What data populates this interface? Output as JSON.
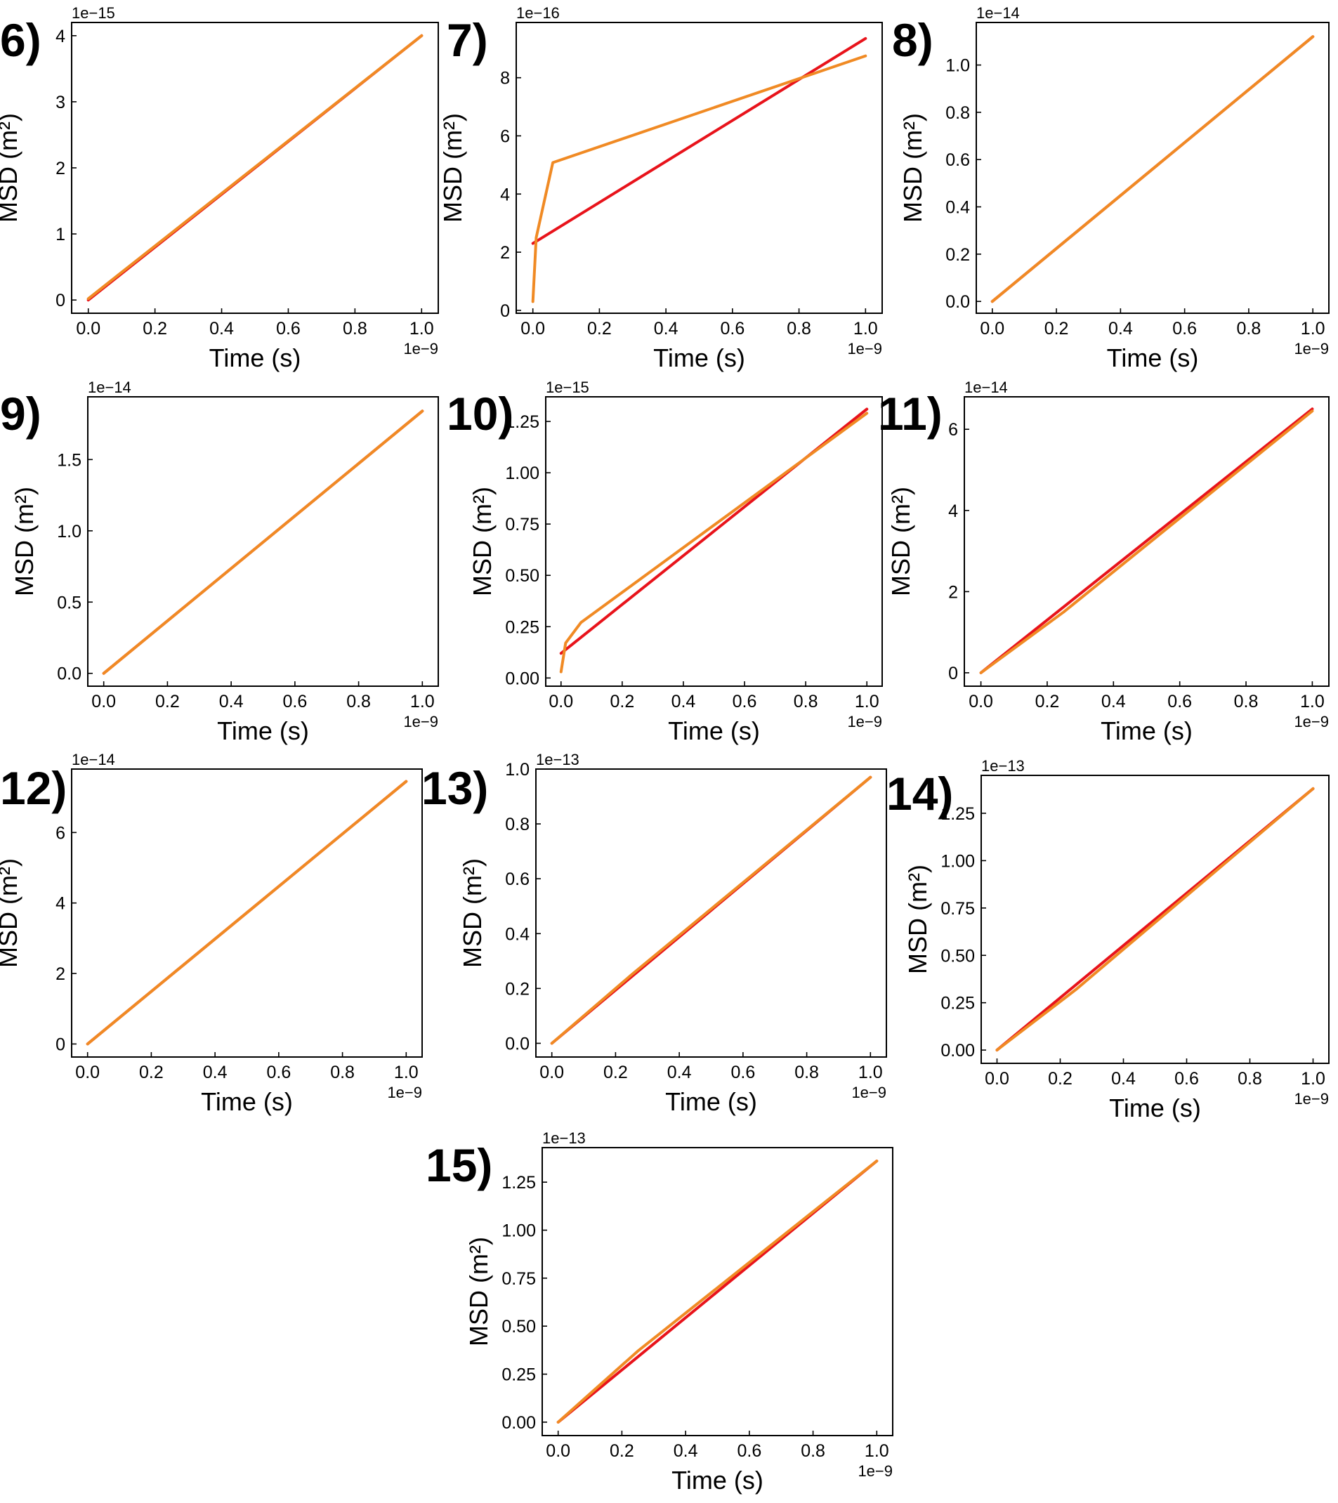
{
  "colors": {
    "series_red": "#e8131b",
    "series_orange": "#f08a24",
    "axes": "#000000"
  },
  "chart_data": [
    {
      "panel": "6)",
      "type": "line",
      "xlabel": "Time (s)",
      "ylabel": "MSD (m²)",
      "x_offset": "1e−9",
      "y_offset": "1e−15",
      "xlim": [
        -0.05,
        1.05
      ],
      "ylim": [
        -0.2,
        4.2
      ],
      "xticks": [
        0.0,
        0.2,
        0.4,
        0.6,
        0.8,
        1.0
      ],
      "xtick_labels": [
        "0.0",
        "0.2",
        "0.4",
        "0.6",
        "0.8",
        "1.0"
      ],
      "yticks": [
        0,
        1,
        2,
        3,
        4
      ],
      "ytick_labels": [
        "0",
        "1",
        "2",
        "3",
        "4"
      ],
      "grid": false,
      "series": [
        {
          "color": "#e8131b",
          "x": [
            0.0,
            1.0
          ],
          "y": [
            0.0,
            4.0
          ]
        },
        {
          "color": "#f08a24",
          "x": [
            0.0,
            0.05,
            0.1,
            1.0
          ],
          "y": [
            0.02,
            0.22,
            0.42,
            4.0
          ]
        }
      ]
    },
    {
      "panel": "7)",
      "type": "line",
      "xlabel": "Time (s)",
      "ylabel": "MSD (m²)",
      "x_offset": "1e−9",
      "y_offset": "1e−16",
      "xlim": [
        -0.05,
        1.05
      ],
      "ylim": [
        -0.1,
        9.9
      ],
      "xticks": [
        0.0,
        0.2,
        0.4,
        0.6,
        0.8,
        1.0
      ],
      "xtick_labels": [
        "0.0",
        "0.2",
        "0.4",
        "0.6",
        "0.8",
        "1.0"
      ],
      "yticks": [
        0,
        2,
        4,
        6,
        8
      ],
      "ytick_labels": [
        "0",
        "2",
        "4",
        "6",
        "8"
      ],
      "grid": false,
      "series": [
        {
          "color": "#e8131b",
          "x": [
            0.0,
            1.0
          ],
          "y": [
            2.3,
            9.35
          ]
        },
        {
          "color": "#f08a24",
          "x": [
            0.0,
            0.01,
            0.06,
            1.0
          ],
          "y": [
            0.3,
            2.5,
            5.08,
            8.75
          ]
        }
      ]
    },
    {
      "panel": "8)",
      "type": "line",
      "xlabel": "Time (s)",
      "ylabel": "MSD (m²)",
      "x_offset": "1e−9",
      "y_offset": "1e−14",
      "xlim": [
        -0.05,
        1.05
      ],
      "ylim": [
        -0.05,
        1.18
      ],
      "xticks": [
        0.0,
        0.2,
        0.4,
        0.6,
        0.8,
        1.0
      ],
      "xtick_labels": [
        "0.0",
        "0.2",
        "0.4",
        "0.6",
        "0.8",
        "1.0"
      ],
      "yticks": [
        0.0,
        0.2,
        0.4,
        0.6,
        0.8,
        1.0
      ],
      "ytick_labels": [
        "0.0",
        "0.2",
        "0.4",
        "0.6",
        "0.8",
        "1.0"
      ],
      "grid": false,
      "series": [
        {
          "color": "#e8131b",
          "x": [
            0.0,
            1.0
          ],
          "y": [
            0.0,
            1.12
          ]
        },
        {
          "color": "#f08a24",
          "x": [
            0.0,
            1.0
          ],
          "y": [
            0.0,
            1.12
          ]
        }
      ]
    },
    {
      "panel": "9)",
      "type": "line",
      "xlabel": "Time (s)",
      "ylabel": "MSD (m²)",
      "x_offset": "1e−9",
      "y_offset": "1e−14",
      "xlim": [
        -0.05,
        1.05
      ],
      "ylim": [
        -0.09,
        1.94
      ],
      "xticks": [
        0.0,
        0.2,
        0.4,
        0.6,
        0.8,
        1.0
      ],
      "xtick_labels": [
        "0.0",
        "0.2",
        "0.4",
        "0.6",
        "0.8",
        "1.0"
      ],
      "yticks": [
        0.0,
        0.5,
        1.0,
        1.5
      ],
      "ytick_labels": [
        "0.0",
        "0.5",
        "1.0",
        "1.5"
      ],
      "grid": false,
      "series": [
        {
          "color": "#e8131b",
          "x": [
            0.0,
            1.0
          ],
          "y": [
            0.0,
            1.84
          ]
        },
        {
          "color": "#f08a24",
          "x": [
            0.0,
            1.0
          ],
          "y": [
            0.0,
            1.84
          ]
        }
      ]
    },
    {
      "panel": "10)",
      "type": "line",
      "xlabel": "Time (s)",
      "ylabel": "MSD (m²)",
      "x_offset": "1e−9",
      "y_offset": "1e−15",
      "xlim": [
        -0.05,
        1.05
      ],
      "ylim": [
        -0.04,
        1.37
      ],
      "xticks": [
        0.0,
        0.2,
        0.4,
        0.6,
        0.8,
        1.0
      ],
      "xtick_labels": [
        "0.0",
        "0.2",
        "0.4",
        "0.6",
        "0.8",
        "1.0"
      ],
      "yticks": [
        0.0,
        0.25,
        0.5,
        0.75,
        1.0,
        1.25
      ],
      "ytick_labels": [
        "0.00",
        "0.25",
        "0.50",
        "0.75",
        "1.00",
        "1.25"
      ],
      "grid": false,
      "series": [
        {
          "color": "#e8131b",
          "x": [
            0.0,
            1.0
          ],
          "y": [
            0.12,
            1.31
          ]
        },
        {
          "color": "#f08a24",
          "x": [
            0.0,
            0.015,
            0.065,
            1.0
          ],
          "y": [
            0.03,
            0.17,
            0.27,
            1.29
          ]
        }
      ]
    },
    {
      "panel": "11)",
      "type": "line",
      "xlabel": "Time (s)",
      "ylabel": "MSD (m²)",
      "x_offset": "1e−9",
      "y_offset": "1e−14",
      "xlim": [
        -0.05,
        1.05
      ],
      "ylim": [
        -0.33,
        6.8
      ],
      "xticks": [
        0.0,
        0.2,
        0.4,
        0.6,
        0.8,
        1.0
      ],
      "xtick_labels": [
        "0.0",
        "0.2",
        "0.4",
        "0.6",
        "0.8",
        "1.0"
      ],
      "yticks": [
        0,
        2,
        4,
        6
      ],
      "ytick_labels": [
        "0",
        "2",
        "4",
        "6"
      ],
      "grid": false,
      "series": [
        {
          "color": "#e8131b",
          "x": [
            0.0,
            1.0
          ],
          "y": [
            0.0,
            6.5
          ]
        },
        {
          "color": "#f08a24",
          "x": [
            0.0,
            0.25,
            1.0
          ],
          "y": [
            0.0,
            1.5,
            6.45
          ]
        }
      ]
    },
    {
      "panel": "12)",
      "type": "line",
      "xlabel": "Time (s)",
      "ylabel": "MSD (m²)",
      "x_offset": "1e−9",
      "y_offset": "1e−14",
      "xlim": [
        -0.05,
        1.05
      ],
      "ylim": [
        -0.37,
        7.8
      ],
      "xticks": [
        0.0,
        0.2,
        0.4,
        0.6,
        0.8,
        1.0
      ],
      "xtick_labels": [
        "0.0",
        "0.2",
        "0.4",
        "0.6",
        "0.8",
        "1.0"
      ],
      "yticks": [
        0,
        2,
        4,
        6
      ],
      "ytick_labels": [
        "0",
        "2",
        "4",
        "6"
      ],
      "grid": false,
      "series": [
        {
          "color": "#e8131b",
          "x": [
            0.0,
            1.0
          ],
          "y": [
            0.0,
            7.45
          ]
        },
        {
          "color": "#f08a24",
          "x": [
            0.0,
            1.0
          ],
          "y": [
            0.0,
            7.45
          ]
        }
      ]
    },
    {
      "panel": "13)",
      "type": "line",
      "xlabel": "Time (s)",
      "ylabel": "MSD (m²)",
      "x_offset": "1e−9",
      "y_offset": "1e−13",
      "xlim": [
        -0.05,
        1.05
      ],
      "ylim": [
        -0.05,
        1.0
      ],
      "xticks": [
        0.0,
        0.2,
        0.4,
        0.6,
        0.8,
        1.0
      ],
      "xtick_labels": [
        "0.0",
        "0.2",
        "0.4",
        "0.6",
        "0.8",
        "1.0"
      ],
      "yticks": [
        0.0,
        0.2,
        0.4,
        0.6,
        0.8,
        1.0
      ],
      "ytick_labels": [
        "0.0",
        "0.2",
        "0.4",
        "0.6",
        "0.8",
        "1.0"
      ],
      "grid": false,
      "series": [
        {
          "color": "#e8131b",
          "x": [
            0.0,
            1.0
          ],
          "y": [
            0.0,
            0.97
          ]
        },
        {
          "color": "#f08a24",
          "x": [
            0.0,
            0.25,
            1.0
          ],
          "y": [
            0.0,
            0.25,
            0.97
          ]
        }
      ]
    },
    {
      "panel": "14)",
      "type": "line",
      "xlabel": "Time (s)",
      "ylabel": "MSD (m²)",
      "x_offset": "1e−9",
      "y_offset": "1e−13",
      "xlim": [
        -0.05,
        1.05
      ],
      "ylim": [
        -0.07,
        1.45
      ],
      "xticks": [
        0.0,
        0.2,
        0.4,
        0.6,
        0.8,
        1.0
      ],
      "xtick_labels": [
        "0.0",
        "0.2",
        "0.4",
        "0.6",
        "0.8",
        "1.0"
      ],
      "yticks": [
        0.0,
        0.25,
        0.5,
        0.75,
        1.0,
        1.25
      ],
      "ytick_labels": [
        "0.00",
        "0.25",
        "0.50",
        "0.75",
        "1.00",
        "1.25"
      ],
      "grid": false,
      "series": [
        {
          "color": "#e8131b",
          "x": [
            0.0,
            1.0
          ],
          "y": [
            0.0,
            1.38
          ]
        },
        {
          "color": "#f08a24",
          "x": [
            0.0,
            0.25,
            1.0
          ],
          "y": [
            0.0,
            0.32,
            1.38
          ]
        }
      ]
    },
    {
      "panel": "15)",
      "type": "line",
      "xlabel": "Time (s)",
      "ylabel": "MSD (m²)",
      "x_offset": "1e−9",
      "y_offset": "1e−13",
      "xlim": [
        -0.05,
        1.05
      ],
      "ylim": [
        -0.07,
        1.43
      ],
      "xticks": [
        0.0,
        0.2,
        0.4,
        0.6,
        0.8,
        1.0
      ],
      "xtick_labels": [
        "0.0",
        "0.2",
        "0.4",
        "0.6",
        "0.8",
        "1.0"
      ],
      "yticks": [
        0.0,
        0.25,
        0.5,
        0.75,
        1.0,
        1.25
      ],
      "ytick_labels": [
        "0.00",
        "0.25",
        "0.50",
        "0.75",
        "1.00",
        "1.25"
      ],
      "grid": false,
      "series": [
        {
          "color": "#e8131b",
          "x": [
            0.0,
            1.0
          ],
          "y": [
            0.0,
            1.36
          ]
        },
        {
          "color": "#f08a24",
          "x": [
            0.0,
            0.25,
            1.0
          ],
          "y": [
            0.0,
            0.37,
            1.36
          ]
        }
      ]
    }
  ]
}
